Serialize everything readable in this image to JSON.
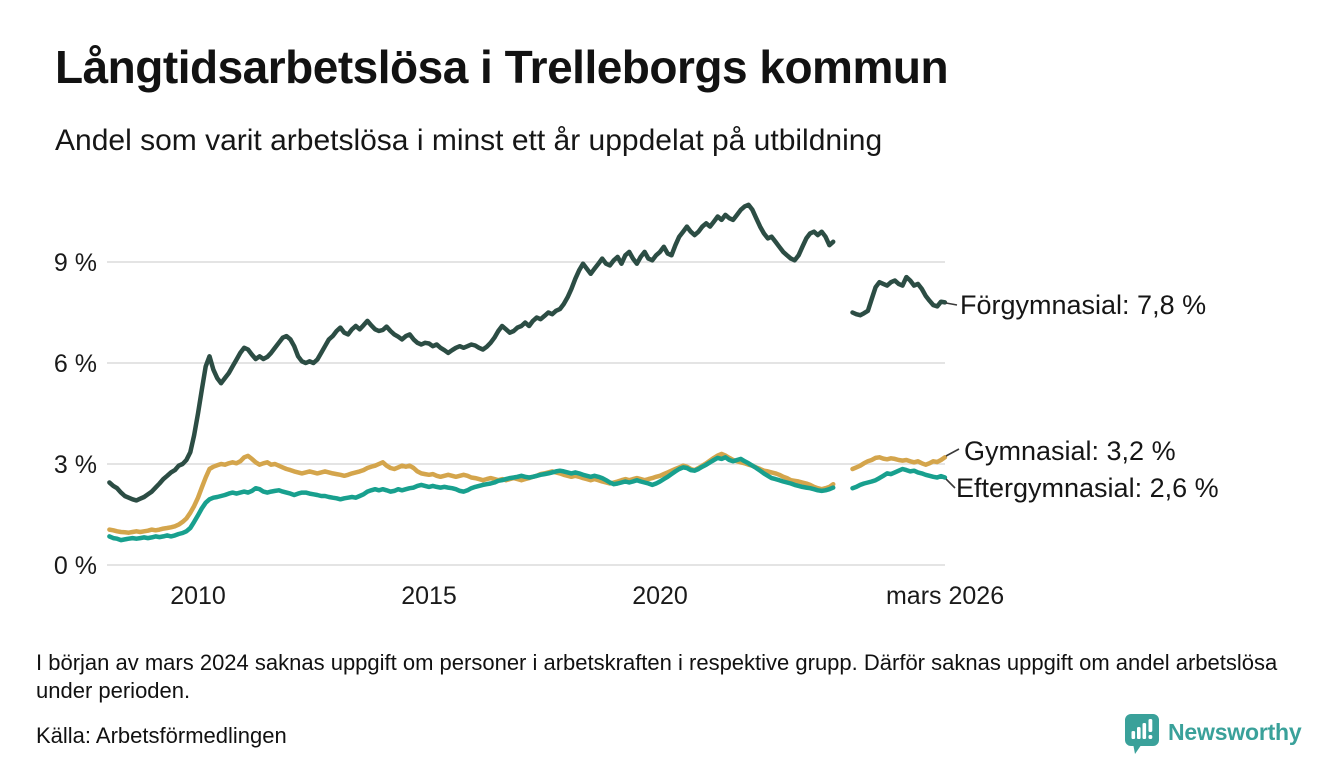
{
  "header": {
    "title": "Långtidsarbetslösa i Trelleborgs kommun",
    "subtitle": "Andel som varit arbetslösa i minst ett år uppdelat på utbildning"
  },
  "chart_data": {
    "type": "line",
    "title": "Långtidsarbetslösa i Trelleborgs kommun",
    "subtitle": "Andel som varit arbetslösa i minst ett år uppdelat på utbildning",
    "unit": "%",
    "grid": "horizontal",
    "x_axis": {
      "range_years": [
        2008.0,
        2026.3
      ],
      "ticks": [
        {
          "t": 2010,
          "label": "2010"
        },
        {
          "t": 2015,
          "label": "2015"
        },
        {
          "t": 2020,
          "label": "2020"
        },
        {
          "t": 2026.17,
          "label": "mars 2026"
        }
      ]
    },
    "y_axis": {
      "range": [
        0,
        10.9
      ],
      "ticks": [
        {
          "v": 0,
          "label": "0 %"
        },
        {
          "v": 3,
          "label": "3 %"
        },
        {
          "v": 6,
          "label": "6 %"
        },
        {
          "v": 9,
          "label": "9 %"
        }
      ]
    },
    "data_gap": {
      "from": "nov 2023",
      "to": "feb 2024"
    },
    "series": [
      {
        "id": "forgymnasial",
        "name": "Förgymnasial",
        "label": "Förgymnasial: 7,8 %",
        "latest_value": "7,8 %",
        "color": "#2c4d44",
        "start_year": 2008.0833,
        "step_months": 1,
        "values": [
          2.45,
          2.35,
          2.28,
          2.15,
          2.05,
          2.0,
          1.95,
          1.92,
          1.97,
          2.02,
          2.1,
          2.18,
          2.3,
          2.42,
          2.55,
          2.65,
          2.75,
          2.82,
          2.95,
          3.0,
          3.12,
          3.35,
          3.85,
          4.5,
          5.2,
          5.9,
          6.2,
          5.8,
          5.55,
          5.4,
          5.55,
          5.7,
          5.9,
          6.1,
          6.3,
          6.45,
          6.4,
          6.25,
          6.12,
          6.2,
          6.12,
          6.18,
          6.3,
          6.45,
          6.6,
          6.75,
          6.8,
          6.7,
          6.5,
          6.2,
          6.05,
          6.0,
          6.05,
          6.0,
          6.1,
          6.3,
          6.5,
          6.7,
          6.8,
          6.95,
          7.05,
          6.9,
          6.85,
          7.0,
          7.1,
          7.0,
          7.12,
          7.25,
          7.12,
          7.0,
          6.95,
          6.98,
          7.08,
          6.95,
          6.85,
          6.78,
          6.7,
          6.8,
          6.85,
          6.7,
          6.6,
          6.55,
          6.6,
          6.58,
          6.5,
          6.55,
          6.45,
          6.38,
          6.3,
          6.38,
          6.45,
          6.5,
          6.45,
          6.5,
          6.55,
          6.52,
          6.45,
          6.4,
          6.48,
          6.6,
          6.75,
          6.95,
          7.1,
          7.0,
          6.9,
          6.95,
          7.05,
          7.1,
          7.2,
          7.1,
          7.25,
          7.35,
          7.3,
          7.4,
          7.5,
          7.45,
          7.55,
          7.6,
          7.75,
          7.95,
          8.2,
          8.5,
          8.75,
          8.95,
          8.8,
          8.65,
          8.8,
          8.95,
          9.1,
          8.95,
          8.9,
          9.05,
          9.15,
          8.95,
          9.2,
          9.3,
          9.1,
          8.95,
          9.15,
          9.3,
          9.1,
          9.05,
          9.2,
          9.3,
          9.45,
          9.25,
          9.2,
          9.5,
          9.75,
          9.9,
          10.05,
          9.9,
          9.8,
          9.9,
          10.05,
          10.15,
          10.05,
          10.2,
          10.35,
          10.25,
          10.4,
          10.3,
          10.25,
          10.4,
          10.55,
          10.65,
          10.7,
          10.55,
          10.3,
          10.05,
          9.85,
          9.7,
          9.75,
          9.6,
          9.45,
          9.3,
          9.2,
          9.1,
          9.05,
          9.2,
          9.45,
          9.7,
          9.85,
          9.9,
          9.8,
          9.9,
          9.75,
          9.5,
          9.6,
          null,
          null,
          null,
          null,
          7.5,
          7.45,
          7.42,
          7.48,
          7.55,
          7.9,
          8.25,
          8.4,
          8.35,
          8.3,
          8.4,
          8.45,
          8.35,
          8.3,
          8.55,
          8.45,
          8.3,
          8.35,
          8.2,
          8.0,
          7.85,
          7.72,
          7.68,
          7.82,
          7.8
        ]
      },
      {
        "id": "gymnasial",
        "name": "Gymnasial",
        "label": "Gymnasial: 3,2 %",
        "latest_value": "3,2 %",
        "color": "#d4a54c",
        "start_year": 2008.0833,
        "step_months": 1,
        "values": [
          1.05,
          1.03,
          1.0,
          0.98,
          0.97,
          0.96,
          0.98,
          1.0,
          0.98,
          1.0,
          1.02,
          1.05,
          1.03,
          1.05,
          1.08,
          1.1,
          1.12,
          1.15,
          1.2,
          1.28,
          1.38,
          1.55,
          1.75,
          2.0,
          2.3,
          2.6,
          2.85,
          2.92,
          2.96,
          3.0,
          2.98,
          3.02,
          3.05,
          3.02,
          3.08,
          3.2,
          3.24,
          3.15,
          3.05,
          2.98,
          3.02,
          3.05,
          2.98,
          3.0,
          2.95,
          2.9,
          2.85,
          2.82,
          2.78,
          2.75,
          2.72,
          2.75,
          2.78,
          2.75,
          2.72,
          2.75,
          2.78,
          2.75,
          2.72,
          2.7,
          2.68,
          2.65,
          2.68,
          2.72,
          2.75,
          2.78,
          2.82,
          2.88,
          2.92,
          2.95,
          3.0,
          3.05,
          2.95,
          2.88,
          2.85,
          2.9,
          2.95,
          2.92,
          2.95,
          2.88,
          2.78,
          2.72,
          2.7,
          2.68,
          2.7,
          2.65,
          2.62,
          2.65,
          2.68,
          2.65,
          2.62,
          2.65,
          2.68,
          2.65,
          2.6,
          2.58,
          2.55,
          2.52,
          2.55,
          2.58,
          2.55,
          2.52,
          2.55,
          2.52,
          2.55,
          2.58,
          2.55,
          2.52,
          2.55,
          2.58,
          2.62,
          2.65,
          2.7,
          2.72,
          2.75,
          2.78,
          2.75,
          2.72,
          2.68,
          2.65,
          2.62,
          2.65,
          2.62,
          2.58,
          2.55,
          2.52,
          2.55,
          2.52,
          2.48,
          2.45,
          2.42,
          2.45,
          2.48,
          2.52,
          2.55,
          2.52,
          2.55,
          2.58,
          2.55,
          2.52,
          2.55,
          2.58,
          2.62,
          2.65,
          2.7,
          2.75,
          2.8,
          2.85,
          2.9,
          2.95,
          2.92,
          2.85,
          2.82,
          2.88,
          2.95,
          3.02,
          3.1,
          3.18,
          3.25,
          3.3,
          3.25,
          3.18,
          3.12,
          3.08,
          3.05,
          3.02,
          2.98,
          2.95,
          2.9,
          2.85,
          2.8,
          2.78,
          2.75,
          2.72,
          2.68,
          2.62,
          2.58,
          2.52,
          2.5,
          2.48,
          2.45,
          2.42,
          2.38,
          2.32,
          2.28,
          2.25,
          2.28,
          2.32,
          2.4,
          null,
          null,
          null,
          null,
          2.85,
          2.9,
          2.95,
          3.02,
          3.08,
          3.12,
          3.18,
          3.2,
          3.16,
          3.14,
          3.17,
          3.15,
          3.12,
          3.1,
          3.12,
          3.08,
          3.05,
          3.08,
          3.02,
          2.98,
          3.02,
          3.08,
          3.06,
          3.12,
          3.2
        ]
      },
      {
        "id": "eftergymnasial",
        "name": "Eftergymnasial",
        "label": "Eftergymnasial: 2,6 %",
        "latest_value": "2,6 %",
        "color": "#18a08e",
        "start_year": 2008.0833,
        "step_months": 1,
        "values": [
          0.85,
          0.8,
          0.78,
          0.74,
          0.76,
          0.78,
          0.8,
          0.78,
          0.8,
          0.82,
          0.8,
          0.82,
          0.85,
          0.83,
          0.85,
          0.88,
          0.85,
          0.88,
          0.92,
          0.95,
          1.0,
          1.1,
          1.28,
          1.48,
          1.68,
          1.85,
          1.95,
          2.0,
          2.02,
          2.05,
          2.08,
          2.12,
          2.15,
          2.12,
          2.15,
          2.18,
          2.15,
          2.2,
          2.28,
          2.25,
          2.18,
          2.15,
          2.18,
          2.2,
          2.22,
          2.18,
          2.15,
          2.12,
          2.08,
          2.12,
          2.15,
          2.15,
          2.12,
          2.1,
          2.08,
          2.05,
          2.05,
          2.02,
          2.0,
          1.98,
          1.95,
          1.98,
          2.0,
          2.02,
          2.0,
          2.05,
          2.1,
          2.18,
          2.22,
          2.25,
          2.22,
          2.25,
          2.22,
          2.18,
          2.2,
          2.25,
          2.22,
          2.25,
          2.28,
          2.3,
          2.35,
          2.38,
          2.35,
          2.32,
          2.35,
          2.32,
          2.3,
          2.32,
          2.3,
          2.28,
          2.25,
          2.2,
          2.18,
          2.22,
          2.28,
          2.32,
          2.35,
          2.38,
          2.4,
          2.42,
          2.45,
          2.5,
          2.52,
          2.55,
          2.58,
          2.6,
          2.62,
          2.65,
          2.62,
          2.6,
          2.62,
          2.65,
          2.68,
          2.7,
          2.72,
          2.75,
          2.78,
          2.8,
          2.78,
          2.75,
          2.72,
          2.75,
          2.72,
          2.68,
          2.65,
          2.62,
          2.65,
          2.62,
          2.58,
          2.52,
          2.45,
          2.4,
          2.42,
          2.45,
          2.48,
          2.45,
          2.48,
          2.52,
          2.48,
          2.45,
          2.42,
          2.38,
          2.42,
          2.48,
          2.55,
          2.62,
          2.7,
          2.78,
          2.85,
          2.9,
          2.88,
          2.82,
          2.8,
          2.85,
          2.92,
          2.98,
          3.05,
          3.12,
          3.18,
          3.15,
          3.2,
          3.12,
          3.08,
          3.12,
          3.15,
          3.08,
          3.02,
          2.95,
          2.88,
          2.8,
          2.72,
          2.65,
          2.58,
          2.55,
          2.52,
          2.48,
          2.45,
          2.42,
          2.38,
          2.35,
          2.32,
          2.3,
          2.28,
          2.25,
          2.22,
          2.2,
          2.22,
          2.25,
          2.3,
          null,
          null,
          null,
          null,
          2.28,
          2.32,
          2.38,
          2.42,
          2.45,
          2.48,
          2.52,
          2.58,
          2.65,
          2.72,
          2.7,
          2.75,
          2.8,
          2.85,
          2.82,
          2.78,
          2.8,
          2.75,
          2.72,
          2.68,
          2.65,
          2.62,
          2.6,
          2.64,
          2.6
        ]
      }
    ]
  },
  "footnote": "I början av mars 2024 saknas uppgift om personer i arbetskraften i respektive grupp. Därför saknas uppgift om andel arbetslösa under perioden.",
  "source": "Källa: Arbetsförmedlingen",
  "branding": {
    "name": "Newsworthy",
    "color": "#3aa19a",
    "logo_icon": "bar-chart-speech-bubble"
  },
  "colors": {
    "background": "#ffffff",
    "gridline": "#e4e4e4",
    "text": "#141414"
  }
}
